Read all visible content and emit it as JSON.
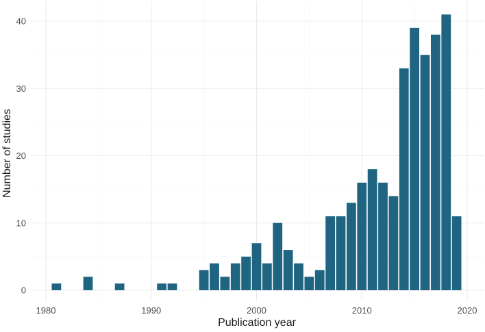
{
  "chart_data": {
    "type": "bar",
    "xlabel": "Publication year",
    "ylabel": "Number of studies",
    "x": [
      1981,
      1984,
      1987,
      1991,
      1992,
      1995,
      1996,
      1997,
      1998,
      1999,
      2000,
      2001,
      2002,
      2003,
      2004,
      2005,
      2006,
      2007,
      2008,
      2009,
      2010,
      2011,
      2012,
      2013,
      2014,
      2015,
      2016,
      2017,
      2018,
      2019
    ],
    "values": [
      1,
      2,
      1,
      1,
      1,
      3,
      4,
      2,
      4,
      5,
      7,
      4,
      10,
      6,
      4,
      2,
      3,
      11,
      11,
      13,
      16,
      18,
      16,
      14,
      33,
      39,
      35,
      38,
      41,
      11
    ],
    "xlim": [
      1980,
      2020
    ],
    "ylim": [
      0,
      42
    ],
    "xticks": [
      "1980",
      "1990",
      "2000",
      "2010",
      "2020"
    ],
    "yticks": [
      "0",
      "10",
      "20",
      "30",
      "40"
    ],
    "grid": true,
    "legend": "none",
    "bar_color": "#1f6582",
    "background": "#ffffff"
  }
}
